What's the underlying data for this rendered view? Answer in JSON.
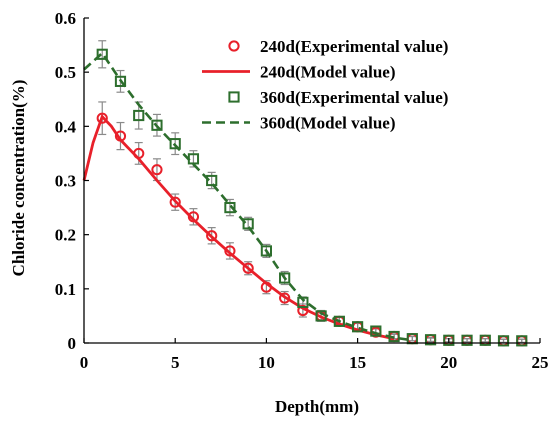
{
  "chart_data": {
    "type": "scatter",
    "title": "",
    "xlabel": "Depth(mm)",
    "ylabel": "Chloride concentration(%)",
    "xlim": [
      0,
      25
    ],
    "ylim": [
      0,
      0.6
    ],
    "x_ticks": [
      0,
      5,
      10,
      15,
      20,
      25
    ],
    "y_ticks": [
      0,
      0.1,
      0.2,
      0.3,
      0.4,
      0.5,
      0.6
    ],
    "x_tick_labels": [
      "0",
      "5",
      "10",
      "15",
      "20",
      "25"
    ],
    "y_tick_labels": [
      "0",
      "0.1",
      "0.2",
      "0.3",
      "0.4",
      "0.5",
      "0.6"
    ],
    "grid": false,
    "legend_position": "top-right",
    "series": [
      {
        "name": "240d(Experimental value)",
        "kind": "markers",
        "marker": "circle",
        "color": "#e8202a",
        "x": [
          1,
          2,
          3,
          4,
          5,
          6,
          7,
          8,
          9,
          10,
          11,
          12,
          13,
          14,
          15,
          16,
          17,
          18,
          19,
          20,
          21,
          22,
          23,
          24
        ],
        "y": [
          0.415,
          0.382,
          0.35,
          0.32,
          0.26,
          0.233,
          0.198,
          0.17,
          0.138,
          0.103,
          0.083,
          0.06,
          0.05,
          0.04,
          0.03,
          0.02,
          0.012,
          0.008,
          0.006,
          0.005,
          0.005,
          0.005,
          0.004,
          0.004
        ],
        "error": [
          0.03,
          0.025,
          0.02,
          0.02,
          0.015,
          0.015,
          0.015,
          0.015,
          0.012,
          0.012,
          0.012,
          0.012,
          0.01,
          0.008,
          0.007,
          0.006,
          0.005,
          0.004,
          0.004,
          0.003,
          0.003,
          0.003,
          0.003,
          0.003
        ]
      },
      {
        "name": "240d(Model value)",
        "kind": "line",
        "dash": "solid",
        "color": "#e8202a",
        "x": [
          0,
          0.5,
          1,
          1.5,
          2,
          3,
          4,
          5,
          6,
          7,
          8,
          9,
          10,
          11,
          12,
          13,
          14,
          15,
          16,
          17
        ],
        "y": [
          0.3,
          0.37,
          0.418,
          0.4,
          0.375,
          0.34,
          0.3,
          0.262,
          0.228,
          0.196,
          0.166,
          0.138,
          0.11,
          0.085,
          0.064,
          0.048,
          0.035,
          0.024,
          0.015,
          0.008
        ]
      },
      {
        "name": "360d(Experimental value)",
        "kind": "markers",
        "marker": "square",
        "color": "#2d6e2d",
        "x": [
          1,
          2,
          3,
          4,
          5,
          6,
          7,
          8,
          9,
          10,
          11,
          12,
          13,
          14,
          15,
          16,
          17,
          18,
          19,
          20,
          21,
          22,
          23,
          24
        ],
        "y": [
          0.533,
          0.483,
          0.42,
          0.402,
          0.368,
          0.34,
          0.3,
          0.25,
          0.22,
          0.17,
          0.12,
          0.075,
          0.05,
          0.04,
          0.03,
          0.022,
          0.012,
          0.008,
          0.006,
          0.005,
          0.005,
          0.005,
          0.004,
          0.004
        ],
        "error": [
          0.025,
          0.02,
          0.025,
          0.02,
          0.02,
          0.015,
          0.015,
          0.015,
          0.012,
          0.012,
          0.012,
          0.01,
          0.008,
          0.007,
          0.006,
          0.005,
          0.004,
          0.004,
          0.003,
          0.003,
          0.003,
          0.003,
          0.003,
          0.003
        ]
      },
      {
        "name": "360d(Model value)",
        "kind": "line",
        "dash": "dashed",
        "color": "#2d6e2d",
        "x": [
          0,
          1,
          2,
          3,
          4,
          5,
          6,
          7,
          8,
          9,
          10,
          11,
          12,
          13,
          14,
          15,
          16,
          17,
          18
        ],
        "y": [
          0.505,
          0.535,
          0.485,
          0.44,
          0.4,
          0.365,
          0.33,
          0.295,
          0.255,
          0.215,
          0.17,
          0.12,
          0.08,
          0.055,
          0.04,
          0.028,
          0.018,
          0.01,
          0.005
        ]
      }
    ]
  }
}
